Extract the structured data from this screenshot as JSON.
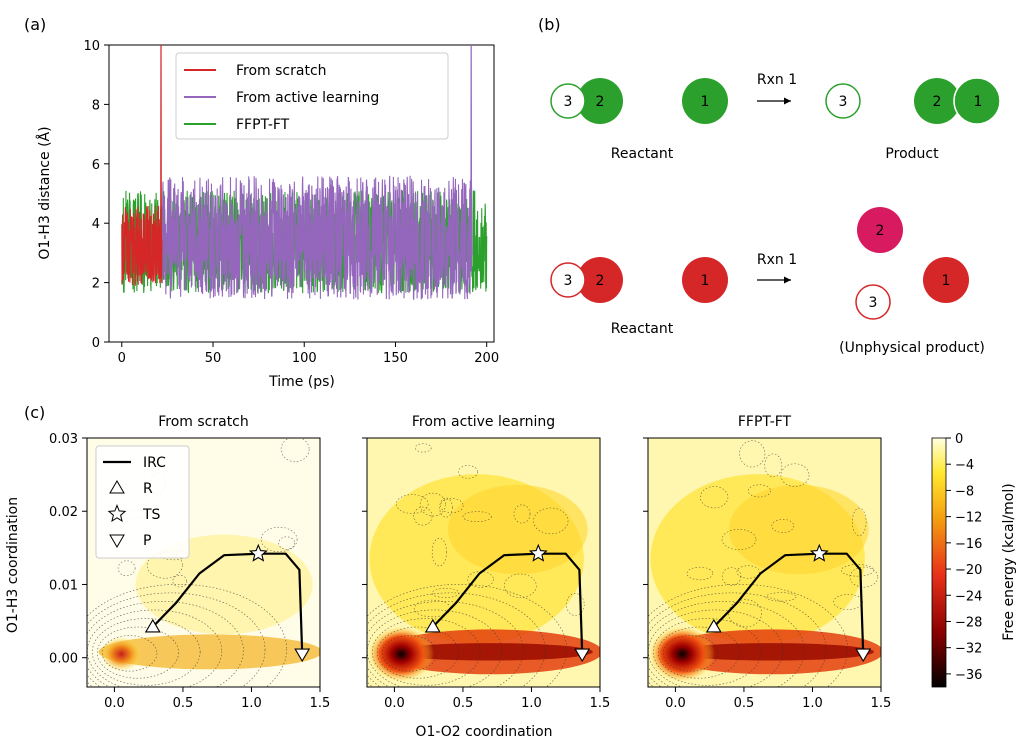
{
  "panel_labels": [
    "(a)",
    "(b)",
    "(c)"
  ],
  "chart_data": [
    {
      "type": "line",
      "panel": "(a)",
      "xlabel": "Time (ps)",
      "ylabel": "O1-H3 distance (Å)",
      "xlim": [
        -7,
        204
      ],
      "ylim": [
        0,
        10
      ],
      "xticks": [
        0,
        50,
        100,
        150,
        200
      ],
      "yticks": [
        0,
        2,
        4,
        6,
        8,
        10
      ],
      "legend_position": "upper-center",
      "series": [
        {
          "name": "From scratch",
          "color": "#d62728",
          "x_range": [
            0,
            22
          ],
          "mean": 3.0,
          "band": [
            1.6,
            4.6
          ],
          "spike_at": 21.5
        },
        {
          "name": "From active learning",
          "color": "#9467bd",
          "x_range": [
            22,
            192
          ],
          "mean": 3.1,
          "band": [
            1.0,
            5.6
          ],
          "spike_at": 191.5
        },
        {
          "name": "FFPT-FT",
          "color": "#2ca02c",
          "x_range": [
            0,
            200
          ],
          "mean": 3.0,
          "band": [
            1.3,
            5.1
          ],
          "spike_at": null
        }
      ]
    },
    {
      "type": "heatmap",
      "panel": "(c)",
      "subplots": [
        {
          "title": "From scratch",
          "min_energy": -20,
          "basin": [
            0.05,
            0.0005
          ]
        },
        {
          "title": "From active learning",
          "min_energy": -38,
          "basin": [
            0.05,
            0.0005
          ]
        },
        {
          "title": "FFPT-FT",
          "min_energy": -38,
          "basin": [
            0.05,
            0.0005
          ]
        }
      ],
      "xlabel": "O1-O2 coordination",
      "ylabel": "O1-H3 coordination",
      "xlim": [
        -0.2,
        1.5
      ],
      "ylim": [
        -0.004,
        0.03
      ],
      "xticks": [
        0.0,
        0.5,
        1.0,
        1.5
      ],
      "yticks": [
        0.0,
        0.01,
        0.02,
        0.03
      ],
      "ytick_labels": [
        "0.00",
        "0.01",
        "0.02",
        "0.03"
      ],
      "colorbar_label": "Free energy (kcal/mol)",
      "colorbar_ticks": [
        0,
        -4,
        -8,
        -12,
        -16,
        -20,
        -24,
        -28,
        -32,
        -36
      ],
      "colorbar_range": [
        -38,
        0
      ],
      "legend": [
        "IRC",
        "R",
        "TS",
        "P"
      ],
      "irc_path": [
        [
          0.28,
          0.0042
        ],
        [
          0.45,
          0.0075
        ],
        [
          0.62,
          0.0115
        ],
        [
          0.8,
          0.014
        ],
        [
          1.05,
          0.0142
        ],
        [
          1.25,
          0.0142
        ],
        [
          1.35,
          0.012
        ],
        [
          1.37,
          0.0005
        ]
      ],
      "R": [
        0.28,
        0.0042
      ],
      "TS": [
        1.05,
        0.0142
      ],
      "P": [
        1.37,
        0.0005
      ]
    }
  ],
  "diagram": {
    "rxn_label": "Rxn 1",
    "row1": {
      "left_caption": "Reactant",
      "right_caption": "Product",
      "color": "#2ca02c"
    },
    "row2": {
      "left_caption": "Reactant",
      "right_caption": "(Unphysical product)",
      "color": "#d62728",
      "highlight_color": "#d81b60"
    },
    "atom_labels": [
      "1",
      "2",
      "3"
    ]
  }
}
